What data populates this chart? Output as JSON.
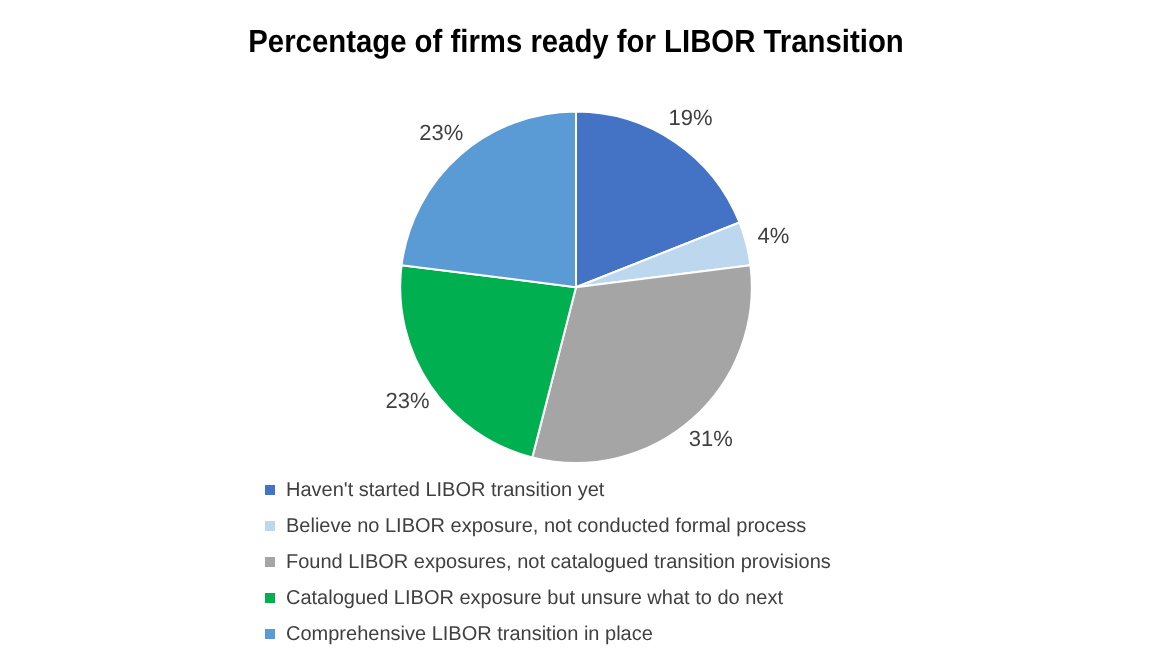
{
  "chart_data": {
    "type": "pie",
    "title": "Percentage of firms ready for LIBOR Transition",
    "categories": [
      "Haven't started LIBOR transition yet",
      "Believe no LIBOR exposure, not conducted formal process",
      "Found LIBOR exposures, not catalogued transition provisions",
      "Catalogued LIBOR exposure but unsure what to do next",
      "Comprehensive LIBOR transition in place"
    ],
    "values": [
      19,
      4,
      31,
      23,
      23
    ],
    "colors": [
      "#4472c4",
      "#bdd7ee",
      "#a5a5a5",
      "#00b050",
      "#5b9bd5"
    ],
    "value_labels": [
      "19%",
      "4%",
      "31%",
      "23%",
      "23%"
    ],
    "legend": "bottom"
  }
}
